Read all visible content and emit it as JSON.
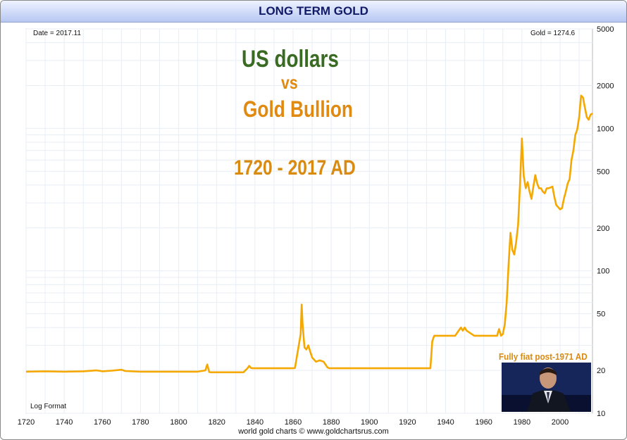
{
  "header": {
    "title": "LONG TERM GOLD"
  },
  "readouts": {
    "date": "Date = 2017.11",
    "gold": "Gold = 1274.6",
    "scale": "Log Format"
  },
  "annotations": {
    "line1": "US dollars",
    "line2": "vs",
    "line3": "Gold Bullion",
    "line4": "1720 - 2017 AD",
    "fiat": "Fully fiat post-1971 AD"
  },
  "footer": {
    "credit": "world gold charts © www.goldchartsrus.com"
  },
  "colors": {
    "series": "#f5a800",
    "grid": "#e8eef5",
    "title_text": "#111a66",
    "usd": "#3a6b22",
    "gold_text": "#e08a12"
  },
  "chart_data": {
    "type": "line",
    "title": "LONG TERM GOLD",
    "xlabel": "",
    "ylabel": "",
    "y_scale": "log",
    "xlim": [
      1720,
      2017
    ],
    "ylim": [
      10,
      5000
    ],
    "x_ticks": [
      1720,
      1740,
      1760,
      1780,
      1800,
      1820,
      1840,
      1860,
      1880,
      1900,
      1920,
      1940,
      1960,
      1980,
      2000
    ],
    "y_ticks": [
      10,
      20,
      50,
      100,
      200,
      500,
      1000,
      2000,
      5000
    ],
    "series": [
      {
        "name": "",
        "x": [
          1720,
          1730,
          1740,
          1750,
          1757,
          1760,
          1765,
          1770,
          1772,
          1780,
          1790,
          1800,
          1810,
          1814,
          1815,
          1816,
          1817,
          1834,
          1835,
          1836,
          1837,
          1838,
          1839,
          1840,
          1850,
          1860,
          1861,
          1862,
          1863,
          1864,
          1864.5,
          1865,
          1866,
          1867,
          1868,
          1869,
          1870,
          1872,
          1874,
          1876,
          1877,
          1878,
          1879,
          1880,
          1900,
          1920,
          1932,
          1933,
          1934,
          1940,
          1945,
          1948,
          1949,
          1950,
          1951,
          1955,
          1960,
          1965,
          1967,
          1968,
          1969,
          1970,
          1971,
          1972,
          1973,
          1974,
          1975,
          1976,
          1977,
          1978,
          1979,
          1980,
          1980.5,
          1981,
          1982,
          1983,
          1984,
          1985,
          1986,
          1987,
          1988,
          1989,
          1990,
          1991,
          1992,
          1993,
          1994,
          1995,
          1996,
          1997,
          1998,
          1999,
          2000,
          2001,
          2002,
          2003,
          2004,
          2005,
          2006,
          2007,
          2008,
          2009,
          2010,
          2011,
          2012,
          2013,
          2014,
          2015,
          2016,
          2017
        ],
        "y": [
          19.6,
          19.7,
          19.6,
          19.7,
          20.0,
          19.7,
          19.9,
          20.2,
          19.8,
          19.6,
          19.6,
          19.6,
          19.6,
          20.0,
          22.0,
          19.5,
          19.4,
          19.4,
          20.0,
          20.6,
          21.5,
          20.8,
          20.7,
          20.7,
          20.7,
          20.7,
          20.8,
          25.0,
          30.0,
          36.0,
          58.0,
          42.0,
          29.0,
          28.0,
          30.0,
          27.0,
          24.6,
          23.0,
          23.5,
          23.0,
          22.0,
          21.0,
          20.7,
          20.7,
          20.7,
          20.7,
          20.7,
          32.0,
          35.0,
          35.0,
          35.0,
          40.0,
          38.0,
          40.0,
          38.0,
          35.0,
          35.0,
          35.0,
          35.0,
          39.0,
          35.0,
          36.0,
          42.0,
          60.0,
          110.0,
          185.0,
          140.0,
          130.0,
          160.0,
          210.0,
          400.0,
          850.0,
          613.0,
          460.0,
          380.0,
          420.0,
          360.0,
          320.0,
          390.0,
          470.0,
          410.0,
          380.0,
          380.0,
          360.0,
          350.0,
          380.0,
          380.0,
          385.0,
          390.0,
          330.0,
          290.0,
          280.0,
          270.0,
          275.0,
          320.0,
          360.0,
          410.0,
          440.0,
          600.0,
          700.0,
          900.0,
          980.0,
          1200.0,
          1700.0,
          1650.0,
          1400.0,
          1200.0,
          1150.0,
          1250.0,
          1274.6
        ]
      }
    ]
  }
}
